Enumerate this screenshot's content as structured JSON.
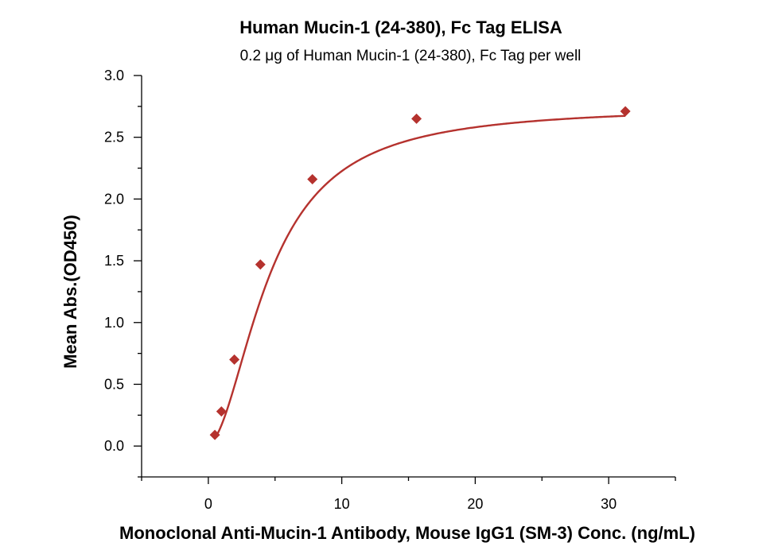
{
  "chart_data": {
    "type": "scatter",
    "title": "Human Mucin-1 (24-380), Fc Tag ELISA",
    "subtitle": "0.2 μg of Human Mucin-1 (24-380), Fc Tag per well",
    "xlabel": "Monoclonal Anti-Mucin-1 Antibody, Mouse IgG1 (SM-3)  Conc. (ng/mL)",
    "ylabel": "Mean Abs.(OD450)",
    "xlim": [
      -5,
      35
    ],
    "ylim": [
      -0.25,
      3.0
    ],
    "x_ticks": [
      0,
      10,
      20,
      30
    ],
    "x_tick_labels": [
      "0",
      "10",
      "20",
      "30"
    ],
    "y_ticks": [
      0.0,
      0.5,
      1.0,
      1.5,
      2.0,
      2.5,
      3.0
    ],
    "y_tick_labels": [
      "0.0",
      "0.5",
      "1.0",
      "1.5",
      "2.0",
      "2.5",
      "3.0"
    ],
    "grid": false,
    "series": [
      {
        "marker": "diamond",
        "color": "#b5322e",
        "x": [
          0.49,
          0.98,
          1.95,
          3.9,
          7.8,
          15.6,
          31.25
        ],
        "y": [
          0.09,
          0.28,
          0.7,
          1.47,
          2.16,
          2.65,
          2.71
        ],
        "fit": "curve"
      }
    ]
  }
}
